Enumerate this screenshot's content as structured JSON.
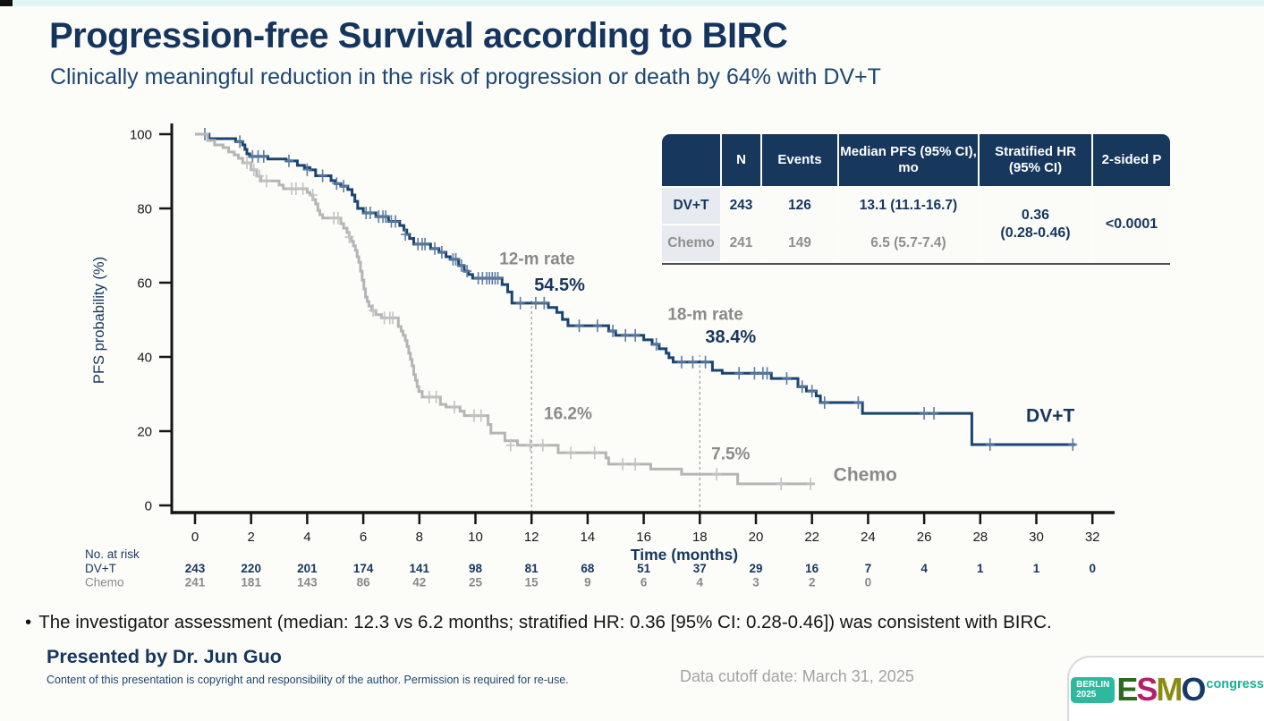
{
  "page": {
    "title": "Progression-free Survival according to BIRC",
    "subtitle": "Clinically meaningful reduction in the risk of progression or death by 64% with DV+T",
    "bullet_marker": "•",
    "bullet": "The investigator assessment (median: 12.3 vs 6.2 months; stratified HR: 0.36 [95% CI: 0.28-0.46]) was consistent with BIRC.",
    "presented_by": "Presented by Dr. Jun Guo",
    "copyright": "Content of this presentation is copyright and responsibility of the author. Permission is required for re-use.",
    "data_cutoff": "Data cutoff date: March 31, 2025"
  },
  "colors": {
    "navy_text": "#17365d",
    "curve_navy": "#1a4472",
    "curve_gray": "#b5b5b5",
    "annotation_gray": "#8a8a8a",
    "table_header_bg": "#17375d",
    "axis_black": "#151515"
  },
  "summary_table": {
    "headers": [
      "",
      "N",
      "Events",
      "Median PFS (95% CI), mo",
      "Stratified HR (95% CI)",
      "2-sided P"
    ],
    "rows": [
      {
        "label": "DV+T",
        "n": "243",
        "events": "126",
        "median": "13.1 (11.1-16.7)"
      },
      {
        "label": "Chemo",
        "n": "241",
        "events": "149",
        "median": "6.5 (5.7-7.4)"
      }
    ],
    "hr_line1": "0.36",
    "hr_line2": "(0.28-0.46)",
    "p": "<0.0001"
  },
  "chart_data": {
    "type": "line",
    "subtype": "kaplan-meier-step",
    "title": "Progression-free Survival according to BIRC",
    "xlabel": "Time (months)",
    "ylabel": "PFS probability (%)",
    "xlim": [
      0,
      32.5
    ],
    "ylim": [
      0,
      100
    ],
    "grid": false,
    "xticks": [
      0,
      2,
      4,
      6,
      8,
      10,
      12,
      14,
      16,
      18,
      20,
      22,
      24,
      26,
      28,
      30,
      32
    ],
    "yticks": [
      0,
      20,
      40,
      60,
      80,
      100
    ],
    "dashed_lines": [
      {
        "t": 12,
        "top": 56
      },
      {
        "t": 18,
        "top": 40.5
      }
    ],
    "annotations": [
      {
        "text": "12-m rate",
        "t": 12.2,
        "s": 65.0,
        "color": "gray",
        "size": 19
      },
      {
        "text": "54.5%",
        "t": 13.0,
        "s": 57.8,
        "color": "navy",
        "size": 20
      },
      {
        "text": "18-m rate",
        "t": 18.2,
        "s": 50.0,
        "color": "gray",
        "size": 19
      },
      {
        "text": "38.4%",
        "t": 19.1,
        "s": 43.8,
        "color": "navy",
        "size": 20
      },
      {
        "text": "16.2%",
        "t": 13.3,
        "s": 23.2,
        "color": "gray",
        "size": 19
      },
      {
        "text": "7.5%",
        "t": 19.1,
        "s": 12.4,
        "color": "gray",
        "size": 19
      },
      {
        "text": "DV+T",
        "t": 30.5,
        "s": 22.5,
        "color": "navy",
        "size": 21
      },
      {
        "text": "Chemo",
        "t": 23.9,
        "s": 6.6,
        "color": "gray",
        "size": 21
      }
    ],
    "series": [
      {
        "name": "DV+T",
        "color": "#1a4472",
        "censor_color": "#5d7ca3",
        "end": 31.4,
        "drop_points": [
          [
            0,
            100
          ],
          [
            0.5,
            98.8
          ],
          [
            1.45,
            98
          ],
          [
            1.7,
            97.1
          ],
          [
            1.78,
            95.9
          ],
          [
            1.85,
            94.7
          ],
          [
            1.95,
            94
          ],
          [
            2.6,
            93.3
          ],
          [
            3.25,
            92.8
          ],
          [
            3.65,
            91.6
          ],
          [
            3.9,
            91
          ],
          [
            4.1,
            90.4
          ],
          [
            4.3,
            88.8
          ],
          [
            4.85,
            87.5
          ],
          [
            5.0,
            86.7
          ],
          [
            5.2,
            86
          ],
          [
            5.45,
            85.1
          ],
          [
            5.6,
            83.6
          ],
          [
            5.7,
            81.9
          ],
          [
            5.8,
            80
          ],
          [
            6.0,
            78.8
          ],
          [
            6.45,
            77.8
          ],
          [
            6.9,
            76.5
          ],
          [
            7.3,
            75.4
          ],
          [
            7.45,
            74.2
          ],
          [
            7.55,
            73
          ],
          [
            7.65,
            71.9
          ],
          [
            7.8,
            70.4
          ],
          [
            8.4,
            69.2
          ],
          [
            8.7,
            68.2
          ],
          [
            8.95,
            67
          ],
          [
            9.1,
            66.3
          ],
          [
            9.4,
            64.6
          ],
          [
            9.6,
            63.1
          ],
          [
            9.75,
            62.2
          ],
          [
            9.9,
            61.2
          ],
          [
            10.95,
            59.5
          ],
          [
            11.15,
            57.5
          ],
          [
            11.3,
            54.5
          ],
          [
            12.6,
            53.3
          ],
          [
            12.9,
            52
          ],
          [
            13.1,
            50.1
          ],
          [
            13.3,
            48.4
          ],
          [
            14.75,
            47
          ],
          [
            15.0,
            45.8
          ],
          [
            16.0,
            44.6
          ],
          [
            16.3,
            43.4
          ],
          [
            16.55,
            42.2
          ],
          [
            16.8,
            41
          ],
          [
            16.9,
            39.8
          ],
          [
            17.05,
            38.6
          ],
          [
            18.45,
            36.4
          ],
          [
            18.8,
            35.6
          ],
          [
            20.55,
            34.2
          ],
          [
            21.5,
            32
          ],
          [
            21.8,
            30.8
          ],
          [
            22.15,
            29.5
          ],
          [
            22.3,
            27.7
          ],
          [
            23.8,
            24.8
          ],
          [
            27.7,
            16.4
          ]
        ],
        "censors": [
          [
            0.35,
            100
          ],
          [
            1.6,
            98
          ],
          [
            2.05,
            94
          ],
          [
            2.25,
            94
          ],
          [
            2.45,
            94
          ],
          [
            3.35,
            92.8
          ],
          [
            4.0,
            90.4
          ],
          [
            4.55,
            88.8
          ],
          [
            5.05,
            86.7
          ],
          [
            5.3,
            86
          ],
          [
            6.1,
            78.8
          ],
          [
            6.25,
            78.8
          ],
          [
            6.55,
            77.8
          ],
          [
            6.7,
            77.8
          ],
          [
            6.8,
            77.8
          ],
          [
            7.0,
            76.5
          ],
          [
            7.15,
            76.5
          ],
          [
            7.5,
            73
          ],
          [
            7.95,
            70.4
          ],
          [
            8.1,
            70.4
          ],
          [
            8.2,
            70.4
          ],
          [
            8.55,
            69.2
          ],
          [
            8.8,
            68.2
          ],
          [
            9.2,
            66.3
          ],
          [
            9.3,
            66.3
          ],
          [
            9.5,
            64.6
          ],
          [
            9.7,
            63.1
          ],
          [
            10.1,
            61.2
          ],
          [
            10.25,
            61.2
          ],
          [
            10.4,
            61.2
          ],
          [
            10.5,
            61.2
          ],
          [
            10.6,
            61.2
          ],
          [
            10.7,
            61.2
          ],
          [
            10.8,
            61.2
          ],
          [
            11.6,
            54.5
          ],
          [
            12.15,
            54.5
          ],
          [
            12.45,
            54.5
          ],
          [
            13.7,
            48.4
          ],
          [
            14.35,
            48.4
          ],
          [
            14.9,
            47
          ],
          [
            15.35,
            45.8
          ],
          [
            15.7,
            45.8
          ],
          [
            16.45,
            43.4
          ],
          [
            17.35,
            38.6
          ],
          [
            17.75,
            38.6
          ],
          [
            18.2,
            38.6
          ],
          [
            19.4,
            35.6
          ],
          [
            19.95,
            35.6
          ],
          [
            20.25,
            35.6
          ],
          [
            20.4,
            35.6
          ],
          [
            21.1,
            34.2
          ],
          [
            21.65,
            32
          ],
          [
            22.0,
            30.8
          ],
          [
            22.45,
            27.7
          ],
          [
            23.65,
            27.7
          ],
          [
            26.0,
            24.8
          ],
          [
            26.35,
            24.8
          ],
          [
            28.35,
            16.4
          ],
          [
            31.3,
            16.4
          ]
        ]
      },
      {
        "name": "Chemo",
        "color": "#b5b5b5",
        "censor_color": "#c3c3c3",
        "end": 22.1,
        "drop_points": [
          [
            0,
            100
          ],
          [
            0.45,
            98.3
          ],
          [
            0.7,
            97.1
          ],
          [
            1.0,
            96.4
          ],
          [
            1.2,
            95.2
          ],
          [
            1.4,
            94.4
          ],
          [
            1.55,
            93.5
          ],
          [
            1.7,
            92.3
          ],
          [
            2.0,
            90.4
          ],
          [
            2.2,
            88.7
          ],
          [
            2.35,
            87.4
          ],
          [
            3.0,
            86.3
          ],
          [
            3.15,
            85.3
          ],
          [
            4.0,
            84.3
          ],
          [
            4.1,
            83.6
          ],
          [
            4.2,
            82.4
          ],
          [
            4.3,
            81.2
          ],
          [
            4.38,
            79.5
          ],
          [
            4.45,
            78.3
          ],
          [
            4.55,
            77.4
          ],
          [
            5.2,
            75.9
          ],
          [
            5.3,
            74.7
          ],
          [
            5.42,
            73.5
          ],
          [
            5.5,
            72.3
          ],
          [
            5.58,
            71.1
          ],
          [
            5.65,
            69.9
          ],
          [
            5.72,
            68.7
          ],
          [
            5.78,
            67
          ],
          [
            5.84,
            65.5
          ],
          [
            5.9,
            63.1
          ],
          [
            5.96,
            60.7
          ],
          [
            6.02,
            58.3
          ],
          [
            6.08,
            56.1
          ],
          [
            6.14,
            54.9
          ],
          [
            6.2,
            53.7
          ],
          [
            6.3,
            52.5
          ],
          [
            6.45,
            51.4
          ],
          [
            6.65,
            50.5
          ],
          [
            7.25,
            48.2
          ],
          [
            7.35,
            47
          ],
          [
            7.42,
            45.8
          ],
          [
            7.5,
            44.4
          ],
          [
            7.56,
            42.8
          ],
          [
            7.62,
            41
          ],
          [
            7.68,
            39.3
          ],
          [
            7.74,
            37.6
          ],
          [
            7.8,
            35.2
          ],
          [
            7.86,
            33.7
          ],
          [
            7.92,
            32
          ],
          [
            7.98,
            30.7
          ],
          [
            8.1,
            29.2
          ],
          [
            8.75,
            27.2
          ],
          [
            8.95,
            26.5
          ],
          [
            9.45,
            25.4
          ],
          [
            9.6,
            24.2
          ],
          [
            10.45,
            21.8
          ],
          [
            10.55,
            19.5
          ],
          [
            11.05,
            17.4
          ],
          [
            11.5,
            16.2
          ],
          [
            12.95,
            14.2
          ],
          [
            14.65,
            12.8
          ],
          [
            14.75,
            11.1
          ],
          [
            16.25,
            9.8
          ],
          [
            17.35,
            8.4
          ],
          [
            19.35,
            5.8
          ]
        ],
        "censors": [
          [
            1.85,
            92.3
          ],
          [
            2.1,
            90.4
          ],
          [
            2.3,
            88.7
          ],
          [
            2.55,
            87.4
          ],
          [
            3.45,
            85.3
          ],
          [
            3.6,
            85.3
          ],
          [
            3.85,
            85.3
          ],
          [
            4.2,
            83.6
          ],
          [
            4.95,
            77.4
          ],
          [
            5.1,
            77.4
          ],
          [
            5.5,
            72.3
          ],
          [
            6.35,
            52.5
          ],
          [
            6.75,
            50.5
          ],
          [
            6.95,
            50.5
          ],
          [
            7.05,
            50.5
          ],
          [
            8.35,
            29.2
          ],
          [
            8.6,
            29.2
          ],
          [
            9.25,
            26.5
          ],
          [
            9.95,
            24.2
          ],
          [
            10.2,
            24.2
          ],
          [
            11.25,
            16.2
          ],
          [
            11.95,
            16.2
          ],
          [
            12.4,
            16.2
          ],
          [
            13.4,
            14.2
          ],
          [
            14.25,
            14.2
          ],
          [
            15.25,
            11.1
          ],
          [
            15.7,
            11.1
          ],
          [
            18.6,
            8.4
          ],
          [
            20.9,
            5.8
          ],
          [
            21.95,
            5.8
          ]
        ]
      }
    ],
    "risk_table": {
      "title": "No. at risk",
      "groups": [
        {
          "name": "DV+T",
          "counts": [
            243,
            220,
            201,
            174,
            141,
            98,
            81,
            68,
            51,
            37,
            29,
            16,
            7,
            4,
            1,
            1,
            0
          ]
        },
        {
          "name": "Chemo",
          "counts": [
            241,
            181,
            143,
            86,
            42,
            25,
            15,
            9,
            6,
            4,
            3,
            2,
            0
          ]
        }
      ]
    }
  },
  "logo": {
    "city": "BERLIN",
    "year": "2025",
    "letters": [
      "E",
      "S",
      "M",
      "O"
    ],
    "letter_colors": [
      "#2d6a1e",
      "#b51f68",
      "#8a8c10",
      "#16386b"
    ],
    "congress": "congress",
    "congress_color": "#17b097",
    "badge_color": "#2cb99e"
  }
}
